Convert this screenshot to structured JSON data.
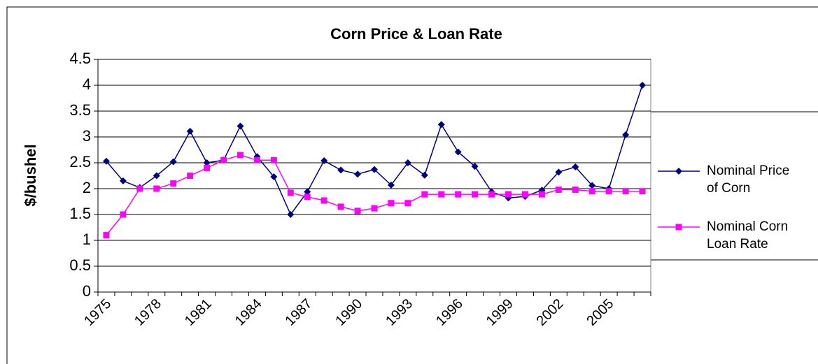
{
  "chart_data": {
    "type": "line",
    "title": "Corn Price & Loan Rate",
    "y_label": "$/bushel",
    "categories": [
      "1975",
      null,
      null,
      "1978",
      null,
      null,
      "1981",
      null,
      null,
      "1984",
      null,
      null,
      "1987",
      null,
      null,
      "1990",
      null,
      null,
      "1993",
      null,
      null,
      "1996",
      null,
      null,
      "1999",
      null,
      null,
      "2002",
      null,
      null,
      "2005",
      null,
      null
    ],
    "series": [
      {
        "name": "Nominal Price of Corn",
        "color": "#000080",
        "marker": "diamond",
        "values": [
          2.53,
          2.15,
          2.02,
          2.25,
          2.52,
          3.11,
          2.5,
          2.55,
          3.21,
          2.62,
          2.23,
          1.5,
          1.94,
          2.54,
          2.36,
          2.28,
          2.37,
          2.07,
          2.5,
          2.26,
          3.24,
          2.71,
          2.43,
          1.94,
          1.82,
          1.85,
          1.97,
          2.32,
          2.42,
          2.06,
          2.0,
          3.04,
          4.0
        ]
      },
      {
        "name": "Nominal Corn Loan Rate",
        "color": "#ff00ff",
        "marker": "square",
        "values": [
          1.1,
          1.5,
          2.0,
          2.0,
          2.1,
          2.25,
          2.4,
          2.55,
          2.65,
          2.55,
          2.55,
          1.92,
          1.84,
          1.77,
          1.65,
          1.57,
          1.62,
          1.72,
          1.72,
          1.89,
          1.89,
          1.89,
          1.89,
          1.89,
          1.89,
          1.89,
          1.89,
          1.98,
          1.98,
          1.95,
          1.95,
          1.95,
          1.95
        ]
      }
    ],
    "ylim": [
      0,
      4.5
    ],
    "yticks": [
      0,
      0.5,
      1,
      1.5,
      2,
      2.5,
      3,
      3.5,
      4,
      4.5
    ],
    "grid": true,
    "legend": "right"
  }
}
